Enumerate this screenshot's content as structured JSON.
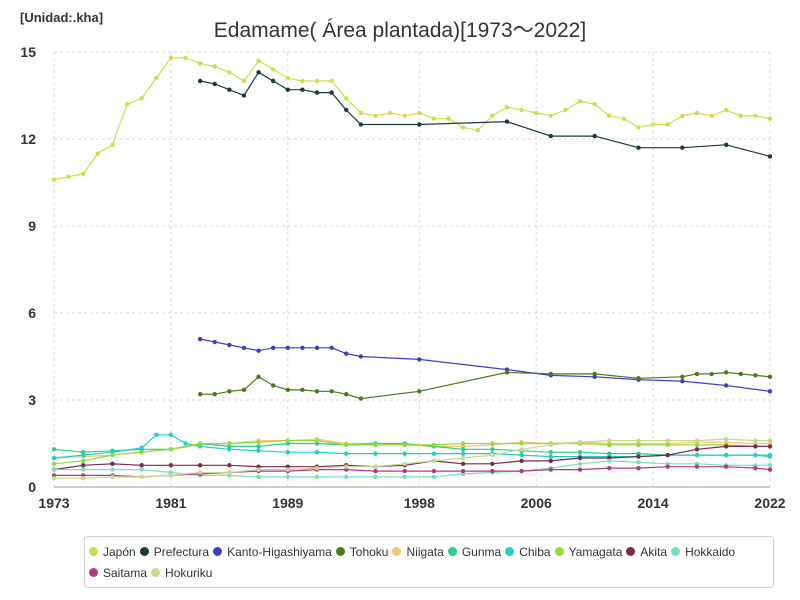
{
  "unit_label": "[Unidad:.kha]",
  "chart_data": {
    "type": "line",
    "title": "Edamame( Área plantada)[1973～2022]",
    "xlabel": "",
    "ylabel": "",
    "xlim": [
      1973,
      2022
    ],
    "ylim": [
      0,
      15
    ],
    "x_ticks": [
      1973,
      1981,
      1989,
      1998,
      2006,
      2014,
      2022
    ],
    "y_ticks": [
      0,
      3,
      6,
      9,
      12,
      15
    ],
    "grid": true,
    "legend_position": "bottom",
    "series": [
      {
        "name": "Japón",
        "color": "#c8e04a",
        "x": [
          1973,
          1974,
          1975,
          1976,
          1977,
          1978,
          1979,
          1980,
          1981,
          1982,
          1983,
          1984,
          1985,
          1986,
          1987,
          1988,
          1989,
          1990,
          1991,
          1992,
          1993,
          1994,
          1995,
          1996,
          1997,
          1998,
          1999,
          2000,
          2001,
          2002,
          2003,
          2004,
          2005,
          2006,
          2007,
          2008,
          2009,
          2010,
          2011,
          2012,
          2013,
          2014,
          2015,
          2016,
          2017,
          2018,
          2019,
          2020,
          2021,
          2022
        ],
        "y": [
          10.6,
          10.7,
          10.8,
          11.5,
          11.8,
          13.2,
          13.4,
          14.1,
          14.8,
          14.8,
          14.6,
          14.5,
          14.3,
          14.0,
          14.7,
          14.4,
          14.1,
          14.0,
          14.0,
          14.0,
          13.4,
          12.9,
          12.8,
          12.9,
          12.8,
          12.9,
          12.7,
          12.7,
          12.4,
          12.3,
          12.8,
          13.1,
          13.0,
          12.9,
          12.8,
          13.0,
          13.3,
          13.2,
          12.8,
          12.7,
          12.4,
          12.5,
          12.5,
          12.8,
          12.9,
          12.8,
          13.0,
          12.8,
          12.8,
          12.7
        ]
      },
      {
        "name": "Prefectura",
        "color": "#1c3a3a",
        "x": [
          1983,
          1984,
          1985,
          1986,
          1987,
          1988,
          1989,
          1990,
          1991,
          1992,
          1993,
          1994,
          1998,
          2004,
          2007,
          2010,
          2013,
          2016,
          2019,
          2022
        ],
        "y": [
          14.0,
          13.9,
          13.7,
          13.5,
          14.3,
          14.0,
          13.7,
          13.7,
          13.6,
          13.6,
          13.0,
          12.5,
          12.5,
          12.6,
          12.1,
          12.1,
          11.7,
          11.7,
          11.8,
          11.4
        ]
      },
      {
        "name": "Kanto-Higashiyama",
        "color": "#3b3fc6",
        "x": [
          1983,
          1984,
          1985,
          1986,
          1987,
          1988,
          1989,
          1990,
          1991,
          1992,
          1993,
          1994,
          1998,
          2004,
          2007,
          2010,
          2013,
          2016,
          2019,
          2022
        ],
        "y": [
          5.1,
          5.0,
          4.9,
          4.8,
          4.7,
          4.8,
          4.8,
          4.8,
          4.8,
          4.8,
          4.6,
          4.5,
          4.4,
          4.05,
          3.85,
          3.8,
          3.7,
          3.65,
          3.5,
          3.3
        ]
      },
      {
        "name": "Tohoku",
        "color": "#4a7a1e",
        "x": [
          1983,
          1984,
          1985,
          1986,
          1987,
          1988,
          1989,
          1990,
          1991,
          1992,
          1993,
          1994,
          1998,
          2004,
          2007,
          2010,
          2013,
          2016,
          2017,
          2018,
          2019,
          2020,
          2021,
          2022
        ],
        "y": [
          3.2,
          3.2,
          3.3,
          3.35,
          3.8,
          3.5,
          3.35,
          3.35,
          3.3,
          3.3,
          3.2,
          3.05,
          3.3,
          3.95,
          3.9,
          3.9,
          3.75,
          3.8,
          3.9,
          3.9,
          3.95,
          3.9,
          3.85,
          3.8
        ]
      },
      {
        "name": "Niigata",
        "color": "#f0c878",
        "x": [
          1973,
          1975,
          1977,
          1979,
          1981,
          1983,
          1985,
          1987,
          1989,
          1991,
          1993,
          1995,
          1997,
          1999,
          2001,
          2003,
          2005,
          2007,
          2009,
          2011,
          2013,
          2015,
          2017,
          2019,
          2021,
          2022
        ],
        "y": [
          1.0,
          1.05,
          1.1,
          1.2,
          1.3,
          1.45,
          1.5,
          1.6,
          1.6,
          1.65,
          1.5,
          1.5,
          1.45,
          1.4,
          1.4,
          1.45,
          1.55,
          1.5,
          1.55,
          1.5,
          1.5,
          1.5,
          1.55,
          1.55,
          1.5,
          1.5
        ]
      },
      {
        "name": "Gunma",
        "color": "#2ecc8a",
        "x": [
          1973,
          1975,
          1977,
          1979,
          1981,
          1983,
          1985,
          1987,
          1989,
          1991,
          1993,
          1995,
          1997,
          1999,
          2001,
          2003,
          2005,
          2007,
          2009,
          2011,
          2013,
          2015,
          2017,
          2019,
          2021,
          2022
        ],
        "y": [
          1.3,
          1.2,
          1.25,
          1.3,
          1.3,
          1.5,
          1.4,
          1.4,
          1.5,
          1.5,
          1.45,
          1.5,
          1.5,
          1.4,
          1.3,
          1.3,
          1.25,
          1.2,
          1.2,
          1.15,
          1.15,
          1.1,
          1.1,
          1.1,
          1.1,
          1.05
        ]
      },
      {
        "name": "Chiba",
        "color": "#22cccc",
        "x": [
          1973,
          1975,
          1977,
          1979,
          1980,
          1981,
          1982,
          1983,
          1985,
          1987,
          1989,
          1991,
          1993,
          1995,
          1997,
          1999,
          2001,
          2003,
          2005,
          2007,
          2009,
          2011,
          2013,
          2015,
          2017,
          2019,
          2021,
          2022
        ],
        "y": [
          1.0,
          1.1,
          1.2,
          1.35,
          1.8,
          1.8,
          1.5,
          1.4,
          1.3,
          1.25,
          1.2,
          1.2,
          1.15,
          1.15,
          1.15,
          1.15,
          1.15,
          1.15,
          1.1,
          1.05,
          1.05,
          1.05,
          1.05,
          1.1,
          1.1,
          1.1,
          1.1,
          1.1
        ]
      },
      {
        "name": "Yamagata",
        "color": "#8fdc3a",
        "x": [
          1973,
          1975,
          1977,
          1979,
          1981,
          1983,
          1985,
          1987,
          1989,
          1991,
          1993,
          1995,
          1997,
          1999,
          2001,
          2003,
          2005,
          2007,
          2009,
          2011,
          2013,
          2015,
          2017,
          2019,
          2021,
          2022
        ],
        "y": [
          0.8,
          0.9,
          1.1,
          1.2,
          1.3,
          1.5,
          1.5,
          1.55,
          1.6,
          1.6,
          1.45,
          1.45,
          1.45,
          1.45,
          1.5,
          1.5,
          1.5,
          1.5,
          1.5,
          1.45,
          1.45,
          1.45,
          1.45,
          1.45,
          1.4,
          1.4
        ]
      },
      {
        "name": "Akita",
        "color": "#7a2a4a",
        "x": [
          1973,
          1975,
          1977,
          1979,
          1981,
          1983,
          1985,
          1987,
          1989,
          1991,
          1993,
          1995,
          1997,
          1999,
          2001,
          2003,
          2005,
          2007,
          2009,
          2011,
          2013,
          2015,
          2017,
          2019,
          2021,
          2022
        ],
        "y": [
          0.6,
          0.75,
          0.8,
          0.75,
          0.75,
          0.75,
          0.75,
          0.7,
          0.7,
          0.7,
          0.75,
          0.7,
          0.75,
          0.9,
          0.8,
          0.8,
          0.9,
          0.9,
          1.0,
          1.0,
          1.05,
          1.1,
          1.3,
          1.4,
          1.4,
          1.4
        ]
      },
      {
        "name": "Hokkaido",
        "color": "#7ae0b8",
        "x": [
          1973,
          1975,
          1977,
          1979,
          1981,
          1983,
          1985,
          1987,
          1989,
          1991,
          1993,
          1995,
          1997,
          1999,
          2001,
          2003,
          2005,
          2007,
          2009,
          2011,
          2013,
          2015,
          2017,
          2019,
          2021,
          2022
        ],
        "y": [
          0.6,
          0.6,
          0.6,
          0.6,
          0.5,
          0.4,
          0.4,
          0.35,
          0.35,
          0.35,
          0.35,
          0.35,
          0.35,
          0.35,
          0.45,
          0.5,
          0.55,
          0.65,
          0.8,
          0.9,
          0.85,
          0.8,
          0.8,
          0.75,
          0.75,
          0.75
        ]
      },
      {
        "name": "Saitama",
        "color": "#b03a8a",
        "x": [
          1973,
          1975,
          1977,
          1979,
          1981,
          1983,
          1985,
          1987,
          1989,
          1991,
          1993,
          1995,
          1997,
          1999,
          2001,
          2003,
          2005,
          2007,
          2009,
          2011,
          2013,
          2015,
          2017,
          2019,
          2021,
          2022
        ],
        "y": [
          0.4,
          0.4,
          0.4,
          0.35,
          0.4,
          0.45,
          0.5,
          0.55,
          0.55,
          0.6,
          0.6,
          0.55,
          0.55,
          0.55,
          0.55,
          0.55,
          0.55,
          0.6,
          0.6,
          0.65,
          0.65,
          0.7,
          0.7,
          0.7,
          0.65,
          0.6
        ]
      },
      {
        "name": "Hokuriku",
        "color": "#c9d98a",
        "x": [
          1973,
          1975,
          1977,
          1979,
          1981,
          1983,
          1985,
          1987,
          1989,
          1991,
          1993,
          1995,
          1997,
          1999,
          2001,
          2003,
          2005,
          2007,
          2009,
          2011,
          2013,
          2015,
          2017,
          2019,
          2021,
          2022
        ],
        "y": [
          0.3,
          0.3,
          0.35,
          0.35,
          0.4,
          0.5,
          0.5,
          0.6,
          0.6,
          0.65,
          0.7,
          0.7,
          0.8,
          0.9,
          1.0,
          1.1,
          1.3,
          1.45,
          1.55,
          1.6,
          1.6,
          1.6,
          1.6,
          1.65,
          1.6,
          1.6
        ]
      }
    ]
  }
}
